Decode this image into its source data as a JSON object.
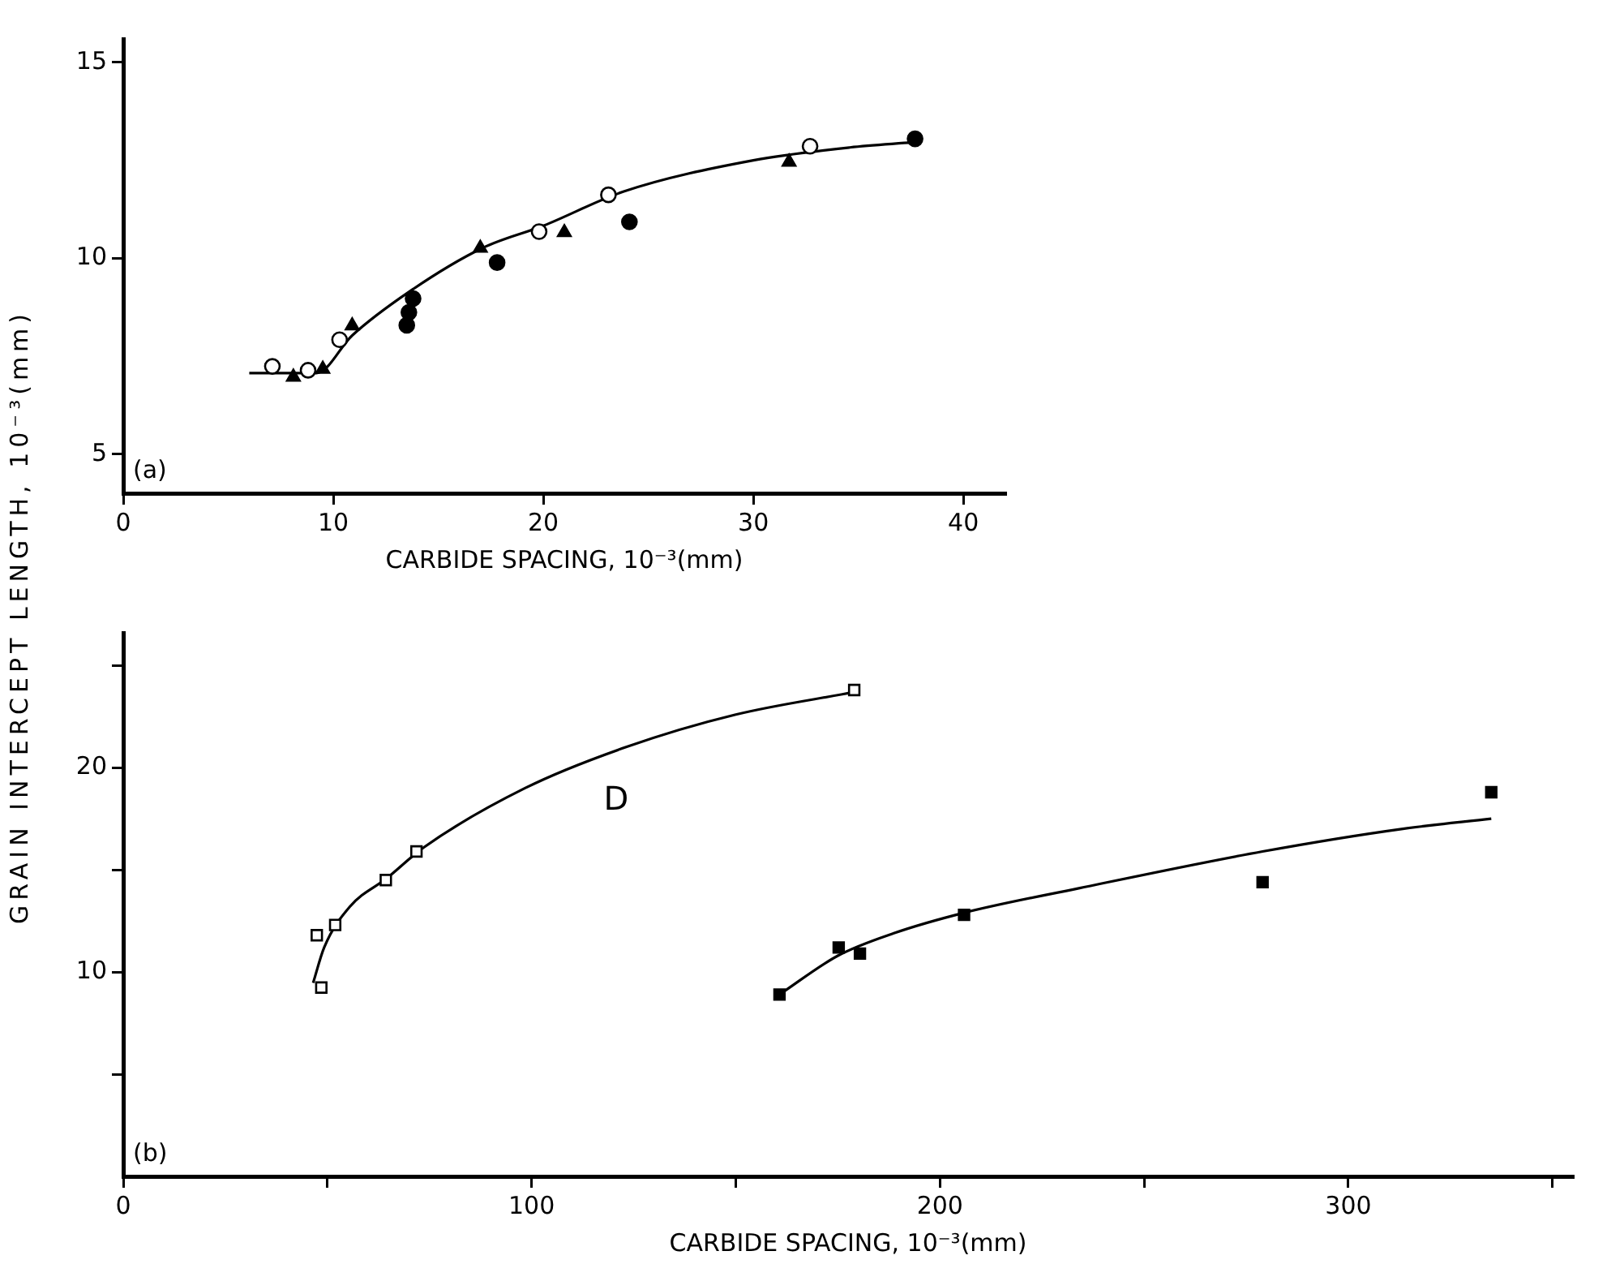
{
  "chart_data": [
    {
      "type": "scatter",
      "ylabel": "GRAIN INTERCEPT LENGTH, 10⁻³(mm)",
      "xlabel": "CARBIDE SPACING, 10⁻³(mm)",
      "annotations": [
        "(a)"
      ],
      "xlim": [
        0,
        42
      ],
      "xticks": [
        0,
        10,
        20,
        30,
        40
      ],
      "ylim": [
        4,
        15.6
      ],
      "yticks": [
        5,
        10,
        15
      ],
      "grid": false,
      "legend": false,
      "series": [
        {
          "marker": "circle",
          "color": "#ffffff",
          "x": [
            7.1,
            8.8,
            10.3,
            19.8,
            23.1,
            32.7
          ],
          "values": [
            7.24,
            7.14,
            7.92,
            10.68,
            11.62,
            12.86
          ]
        },
        {
          "marker": "circle",
          "color": "#000000",
          "x": [
            13.8,
            13.6,
            13.5,
            17.8,
            24.1,
            37.7
          ],
          "values": [
            8.97,
            8.62,
            8.29,
            9.89,
            10.93,
            13.05
          ]
        },
        {
          "marker": "triangle",
          "color": "#000000",
          "x": [
            8.1,
            9.5,
            10.9,
            17.0,
            21.0,
            31.7
          ],
          "values": [
            6.97,
            7.17,
            8.28,
            10.26,
            10.66,
            12.46
          ]
        },
        {
          "type": "line",
          "marker": "none",
          "color": "#000000",
          "x": [
            6.0,
            9.2,
            10.9,
            13.6,
            17.1,
            20.0,
            23.8,
            30.0,
            34.6,
            37.6
          ],
          "values": [
            7.07,
            7.07,
            8.03,
            9.14,
            10.26,
            10.83,
            11.7,
            12.5,
            12.83,
            12.96
          ]
        }
      ]
    },
    {
      "type": "scatter",
      "xlabel": "CARBIDE SPACING, 10⁻³(mm)",
      "annotations": [
        "(b)",
        "D"
      ],
      "xlim": [
        0,
        355
      ],
      "xticks": [
        0,
        {
          "value": 50,
          "label": null
        },
        100,
        {
          "value": 150,
          "label": null
        },
        200,
        {
          "value": 250,
          "label": null
        },
        300,
        {
          "value": 350,
          "label": null
        }
      ],
      "ylim": [
        0,
        26.6
      ],
      "yticks": [
        {
          "value": 5,
          "label": null
        },
        10,
        {
          "value": 15,
          "label": null
        },
        20,
        {
          "value": 25,
          "label": null
        }
      ],
      "grid": false,
      "legend": false,
      "series": [
        {
          "marker": "square",
          "color": "#ffffff",
          "x": [
            47.4,
            48.5,
            51.9,
            64.3,
            71.8,
            179
          ],
          "values": [
            11.8,
            9.24,
            12.3,
            14.5,
            15.9,
            23.8
          ]
        },
        {
          "marker": "square",
          "color": "#000000",
          "x": [
            160.7,
            175.2,
            180.4,
            205.9,
            279,
            335
          ],
          "values": [
            8.9,
            11.2,
            10.9,
            12.8,
            14.4,
            18.8
          ]
        },
        {
          "type": "line",
          "marker": "none",
          "color": "#000000",
          "x": [
            46.5,
            49.2,
            55.5,
            64.6,
            73.6,
            98.4,
            123,
            150,
            179
          ],
          "values": [
            9.47,
            11.2,
            13.2,
            14.6,
            16.1,
            19.0,
            21.0,
            22.6,
            23.7
          ]
        },
        {
          "type": "line",
          "marker": "none",
          "color": "#000000",
          "x": [
            160.7,
            175,
            188.7,
            205.9,
            234,
            279,
            313,
            335
          ],
          "values": [
            8.9,
            10.8,
            11.9,
            12.9,
            14.1,
            15.9,
            17.0,
            17.5
          ]
        }
      ]
    }
  ]
}
